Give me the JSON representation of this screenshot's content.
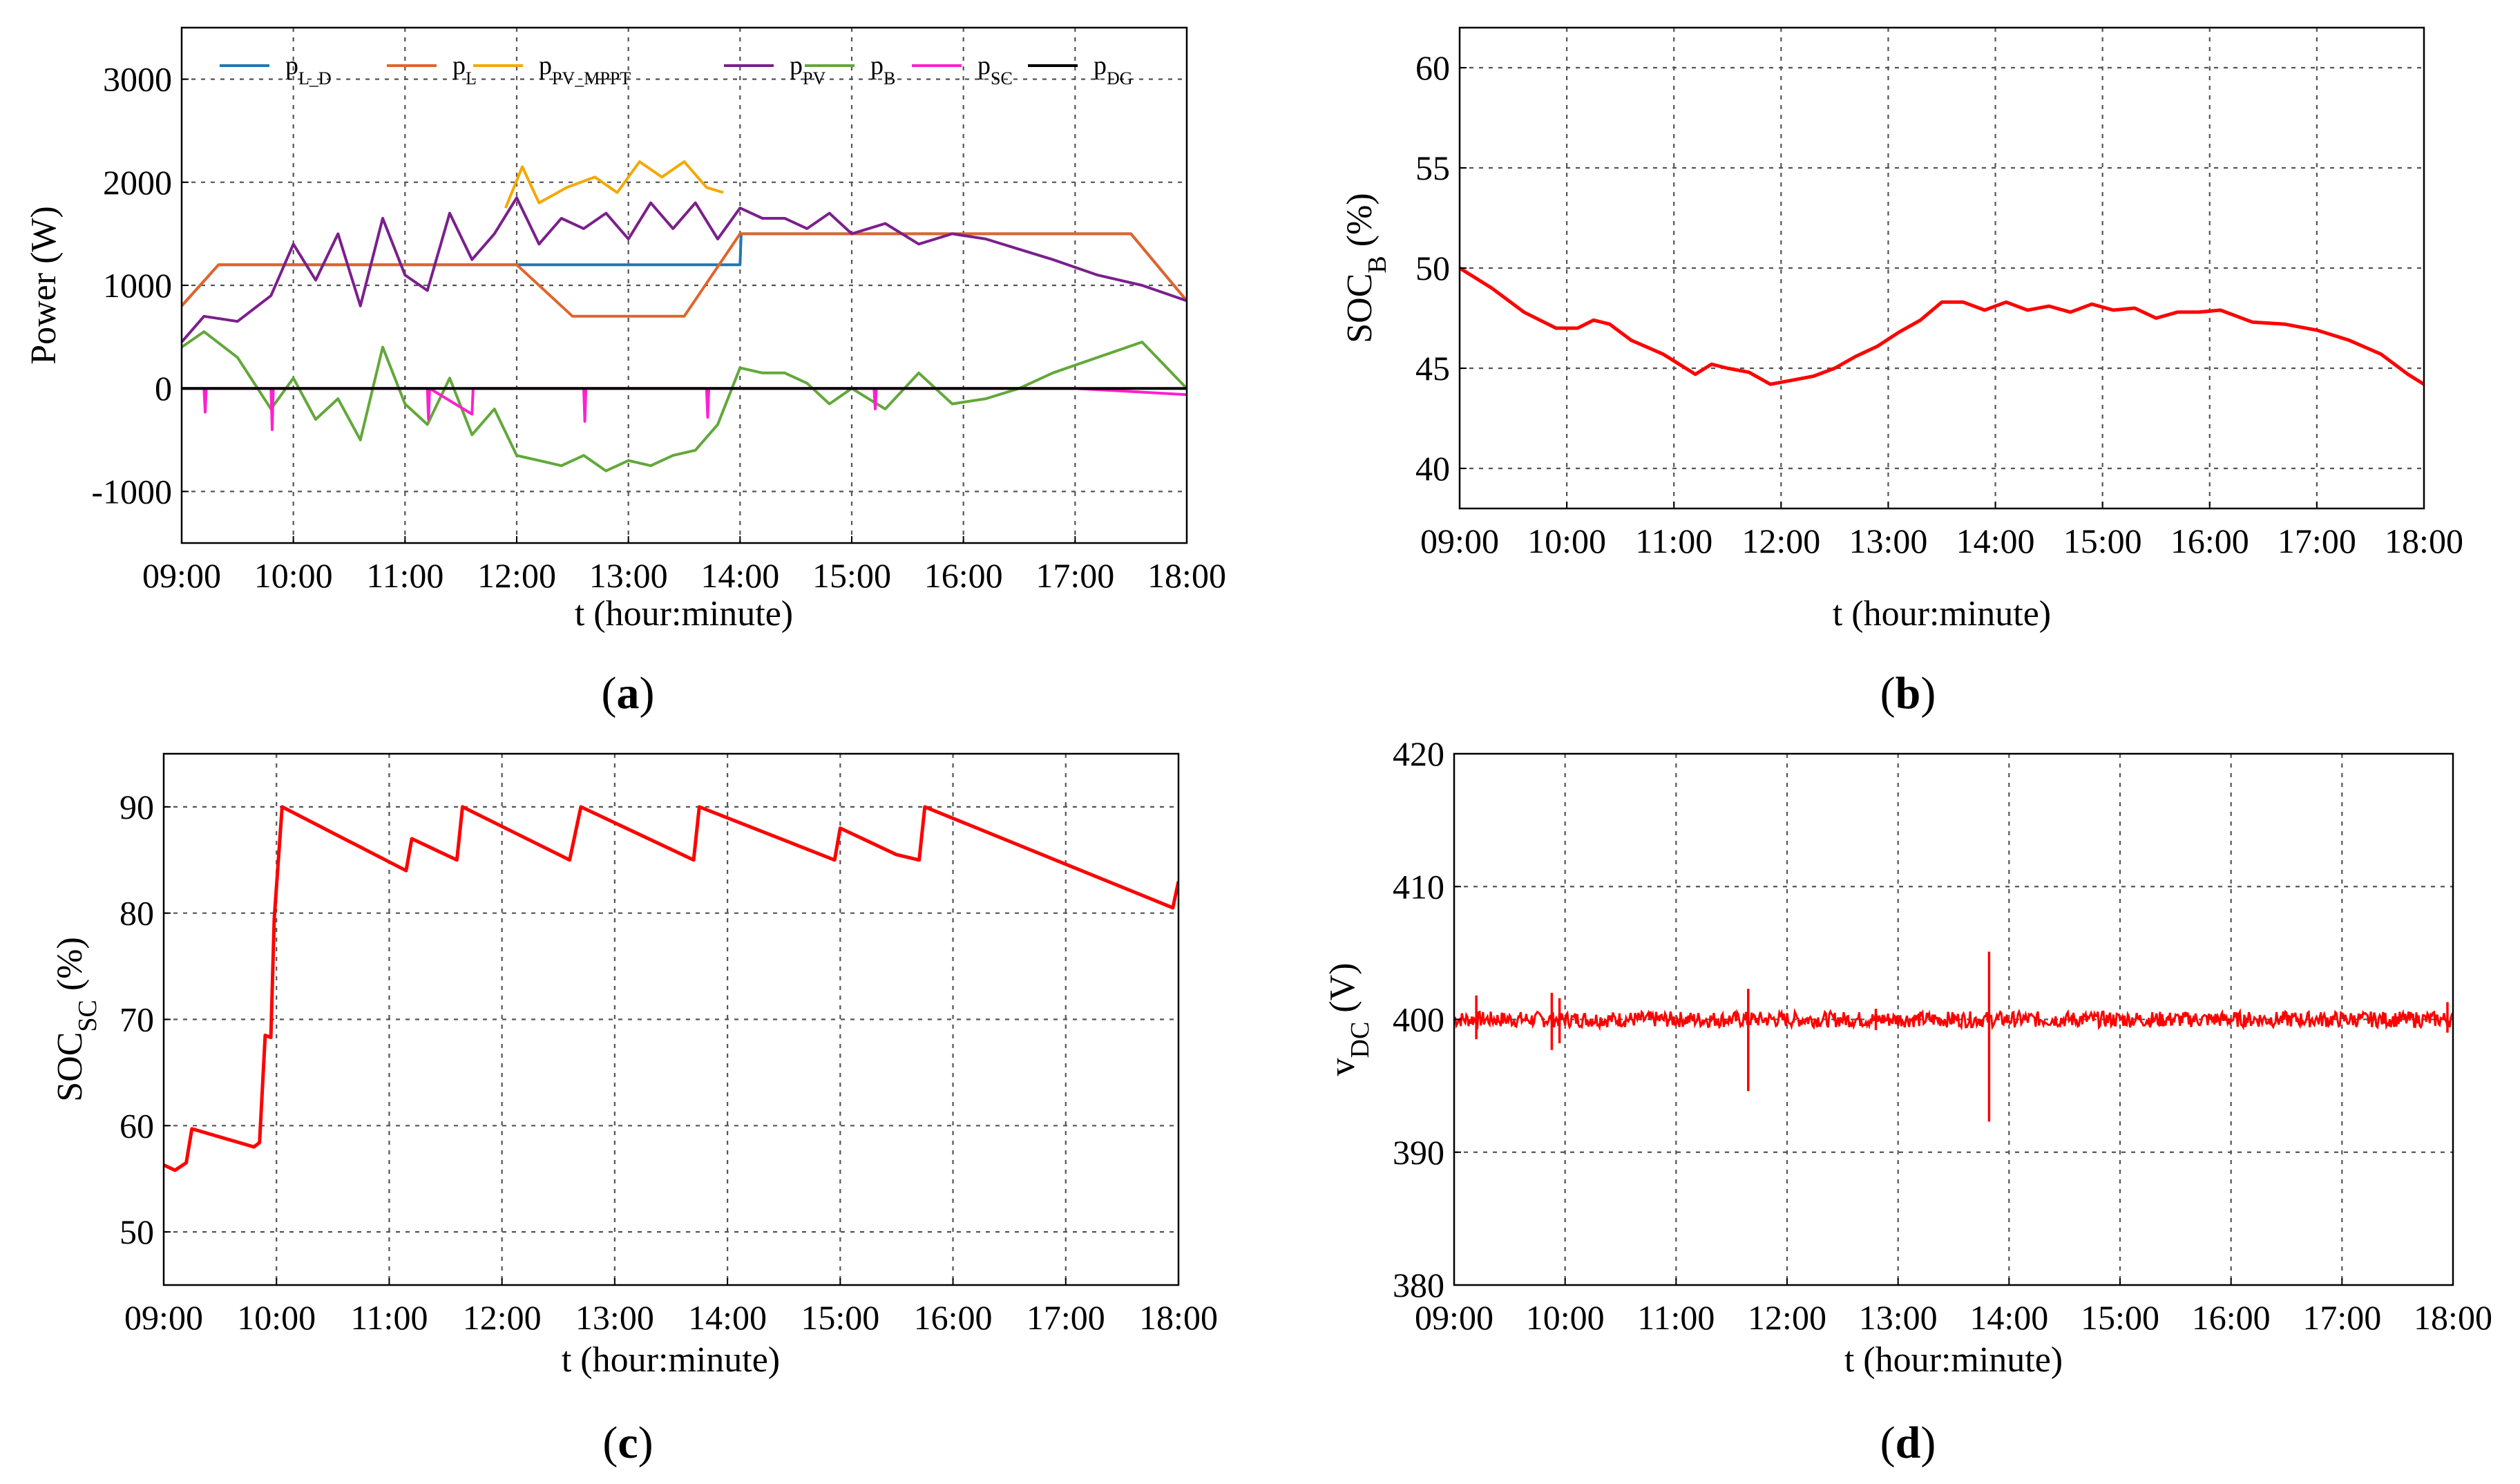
{
  "chart_data": [
    {
      "id": "a",
      "panel_label": "a",
      "type": "line",
      "title": "",
      "xlabel": "t (hour:minute)",
      "ylabel": "Power (W)",
      "xlim": [
        9,
        18
      ],
      "ylim": [
        -1500,
        3500
      ],
      "xticks": [
        "09:00",
        "10:00",
        "11:00",
        "12:00",
        "13:00",
        "14:00",
        "15:00",
        "16:00",
        "17:00",
        "18:00"
      ],
      "yticks": [
        -1000,
        0,
        1000,
        2000,
        3000
      ],
      "ytick_labels": [
        "-1000",
        "0",
        "1000",
        "2000",
        "3000"
      ],
      "grid": true,
      "legend": "top (horizontal)",
      "series": [
        {
          "name": "pL_D",
          "label_main": "p",
          "label_sub": "L_D",
          "color": "#1f77b4",
          "x": [
            9,
            9.33,
            9.34,
            14.0,
            14.01,
            17.5,
            18
          ],
          "values": [
            800,
            1200,
            1200,
            1200,
            1500,
            1500,
            850
          ]
        },
        {
          "name": "pL",
          "label_main": "p",
          "label_sub": "L",
          "color": "#e1642a",
          "x": [
            9,
            9.33,
            12.0,
            12.5,
            13.5,
            14.0,
            17.5,
            18
          ],
          "values": [
            800,
            1200,
            1200,
            700,
            700,
            1500,
            1500,
            850
          ]
        },
        {
          "name": "pPV_MPPT",
          "label_main": "p",
          "label_sub": "PV_MPPT",
          "color": "#f5a800",
          "x": [
            11.9,
            12.05,
            12.2,
            12.45,
            12.7,
            12.9,
            13.1,
            13.3,
            13.5,
            13.7,
            13.85
          ],
          "values": [
            1750,
            2150,
            1800,
            1950,
            2050,
            1900,
            2200,
            2050,
            2200,
            1950,
            1900
          ]
        },
        {
          "name": "pPV",
          "label_main": "p",
          "label_sub": "PV",
          "color": "#7b1f8c",
          "x": [
            9,
            9.2,
            9.5,
            9.8,
            10.0,
            10.2,
            10.4,
            10.6,
            10.8,
            11.0,
            11.2,
            11.4,
            11.6,
            11.8,
            12.0,
            12.2,
            12.4,
            12.6,
            12.8,
            13.0,
            13.2,
            13.4,
            13.6,
            13.8,
            14.0,
            14.2,
            14.4,
            14.6,
            14.8,
            15.0,
            15.3,
            15.6,
            15.9,
            16.2,
            16.5,
            16.8,
            17.2,
            17.6,
            18
          ],
          "values": [
            450,
            700,
            650,
            900,
            1400,
            1050,
            1500,
            800,
            1650,
            1100,
            950,
            1700,
            1250,
            1500,
            1850,
            1400,
            1650,
            1550,
            1700,
            1450,
            1800,
            1550,
            1800,
            1450,
            1750,
            1650,
            1650,
            1550,
            1700,
            1500,
            1600,
            1400,
            1500,
            1450,
            1350,
            1250,
            1100,
            1000,
            850
          ]
        },
        {
          "name": "pB",
          "label_main": "p",
          "label_sub": "B",
          "color": "#62a83a",
          "x": [
            9,
            9.2,
            9.5,
            9.8,
            10.0,
            10.2,
            10.4,
            10.6,
            10.8,
            11.0,
            11.2,
            11.4,
            11.6,
            11.8,
            12.0,
            12.2,
            12.4,
            12.6,
            12.8,
            13.0,
            13.2,
            13.4,
            13.6,
            13.8,
            14.0,
            14.2,
            14.4,
            14.6,
            14.8,
            15.0,
            15.3,
            15.6,
            15.9,
            16.2,
            16.5,
            16.8,
            17.2,
            17.6,
            18
          ],
          "values": [
            400,
            550,
            300,
            -200,
            100,
            -300,
            -100,
            -500,
            400,
            -150,
            -350,
            100,
            -450,
            -200,
            -650,
            -700,
            -750,
            -650,
            -800,
            -700,
            -750,
            -650,
            -600,
            -350,
            200,
            150,
            150,
            50,
            -150,
            0,
            -200,
            150,
            -150,
            -100,
            0,
            150,
            300,
            450,
            0
          ]
        },
        {
          "name": "pSC",
          "label_main": "p",
          "label_sub": "SC",
          "color": "#ff1fd0",
          "x": [
            9,
            9.2,
            9.21,
            9.22,
            9.8,
            9.81,
            9.82,
            10.0,
            11.0,
            11.2,
            11.21,
            11.22,
            11.6,
            11.61,
            12.0,
            12.6,
            12.61,
            12.62,
            13.7,
            13.71,
            13.72,
            14.5,
            15.2,
            15.21,
            15.22,
            16.0,
            17.0,
            18
          ],
          "values": [
            0,
            0,
            -230,
            0,
            0,
            -400,
            0,
            0,
            0,
            0,
            -300,
            0,
            -250,
            0,
            0,
            0,
            -320,
            0,
            0,
            -280,
            0,
            0,
            0,
            -200,
            0,
            0,
            0,
            -60
          ]
        },
        {
          "name": "pDG",
          "label_main": "p",
          "label_sub": "DG",
          "color": "#000000",
          "x": [
            9,
            18
          ],
          "values": [
            0,
            0
          ]
        }
      ]
    },
    {
      "id": "b",
      "panel_label": "b",
      "type": "line",
      "title": "",
      "xlabel": "t (hour:minute)",
      "ylabel_main": "SOC",
      "ylabel_sub": "B",
      "ylabel_unit": " (%)",
      "xlim": [
        9,
        18
      ],
      "ylim": [
        38,
        62
      ],
      "xticks": [
        "09:00",
        "10:00",
        "11:00",
        "12:00",
        "13:00",
        "14:00",
        "15:00",
        "16:00",
        "17:00",
        "18:00"
      ],
      "yticks": [
        40,
        45,
        50,
        55,
        60
      ],
      "ytick_labels": [
        "40",
        "45",
        "50",
        "55",
        "60"
      ],
      "grid": true,
      "series": [
        {
          "name": "SOC_B",
          "color": "#ff0000",
          "x": [
            9.0,
            9.3,
            9.6,
            9.9,
            10.1,
            10.25,
            10.4,
            10.6,
            10.9,
            11.2,
            11.35,
            11.5,
            11.7,
            11.9,
            12.1,
            12.3,
            12.5,
            12.7,
            12.9,
            13.1,
            13.3,
            13.5,
            13.7,
            13.9,
            14.1,
            14.3,
            14.5,
            14.7,
            14.9,
            15.1,
            15.3,
            15.5,
            15.7,
            15.9,
            16.1,
            16.4,
            16.7,
            17.0,
            17.3,
            17.6,
            17.85,
            18.0
          ],
          "values": [
            50.0,
            49.0,
            47.8,
            47.0,
            47.0,
            47.4,
            47.2,
            46.4,
            45.7,
            44.7,
            45.2,
            45.0,
            44.8,
            44.2,
            44.4,
            44.6,
            45.0,
            45.6,
            46.1,
            46.8,
            47.4,
            48.3,
            48.3,
            47.9,
            48.3,
            47.9,
            48.1,
            47.8,
            48.2,
            47.9,
            48.0,
            47.5,
            47.8,
            47.8,
            47.9,
            47.3,
            47.2,
            46.9,
            46.4,
            45.7,
            44.7,
            44.2
          ]
        }
      ]
    },
    {
      "id": "c",
      "panel_label": "c",
      "type": "line",
      "title": "",
      "xlabel": "t (hour:minute)",
      "ylabel_main": "SOC",
      "ylabel_sub": "SC",
      "ylabel_unit": " (%)",
      "xlim": [
        9,
        18
      ],
      "ylim": [
        45,
        95
      ],
      "xticks": [
        "09:00",
        "10:00",
        "11:00",
        "12:00",
        "13:00",
        "14:00",
        "15:00",
        "16:00",
        "17:00",
        "18:00"
      ],
      "yticks": [
        50,
        60,
        70,
        80,
        90
      ],
      "ytick_labels": [
        "50",
        "60",
        "70",
        "80",
        "90"
      ],
      "grid": true,
      "series": [
        {
          "name": "SOC_SC",
          "color": "#ff0000",
          "x": [
            9.0,
            9.1,
            9.2,
            9.25,
            9.8,
            9.85,
            9.9,
            9.95,
            9.98,
            10.05,
            11.15,
            11.2,
            11.6,
            11.65,
            12.6,
            12.7,
            13.7,
            13.75,
            14.95,
            15.0,
            15.5,
            15.7,
            15.75,
            17.95,
            18.0
          ],
          "values": [
            56.3,
            55.8,
            56.5,
            59.7,
            58.0,
            58.4,
            68.5,
            68.3,
            79.5,
            90.0,
            84.0,
            87.0,
            85.0,
            90.0,
            85.0,
            90.0,
            85.0,
            90.0,
            85.0,
            88.0,
            85.5,
            85.0,
            90.0,
            80.5,
            83.0
          ]
        }
      ]
    },
    {
      "id": "d",
      "panel_label": "d",
      "type": "line",
      "title": "",
      "xlabel": "t (hour:minute)",
      "ylabel_main": "v",
      "ylabel_sub": "DC",
      "ylabel_unit": " (V)",
      "xlim": [
        9,
        18
      ],
      "ylim": [
        380,
        420
      ],
      "xticks": [
        "09:00",
        "10:00",
        "11:00",
        "12:00",
        "13:00",
        "14:00",
        "15:00",
        "16:00",
        "17:00",
        "18:00"
      ],
      "yticks": [
        380,
        390,
        400,
        410,
        420
      ],
      "ytick_labels": [
        "380",
        "390",
        "400",
        "410",
        "420"
      ],
      "grid": true,
      "nominal": 400,
      "noise_band": 0.6,
      "spikes": [
        {
          "x": 9.2,
          "low": 398.5,
          "high": 401.8
        },
        {
          "x": 9.88,
          "low": 397.7,
          "high": 402.0
        },
        {
          "x": 9.95,
          "low": 398.2,
          "high": 401.6
        },
        {
          "x": 11.65,
          "low": 394.6,
          "high": 402.3
        },
        {
          "x": 12.8,
          "low": 399.2,
          "high": 400.8
        },
        {
          "x": 13.82,
          "low": 392.3,
          "high": 405.1
        },
        {
          "x": 17.95,
          "low": 399.0,
          "high": 401.3
        }
      ],
      "series": [
        {
          "name": "vDC",
          "color": "#ff0000"
        }
      ]
    }
  ]
}
